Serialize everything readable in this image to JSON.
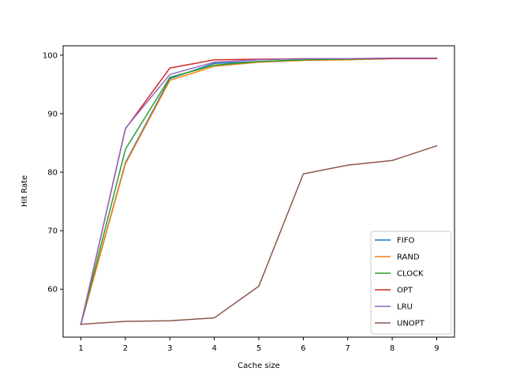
{
  "chart_data": {
    "type": "line",
    "title": "",
    "xlabel": "Cache size",
    "ylabel": "Hit Rate",
    "x": [
      1,
      2,
      3,
      4,
      5,
      6,
      7,
      8,
      9
    ],
    "xlim": [
      0.6,
      9.4
    ],
    "ylim": [
      51.8,
      101.6
    ],
    "xticks": [
      1,
      2,
      3,
      4,
      5,
      6,
      7,
      8,
      9
    ],
    "yticks": [
      60,
      70,
      80,
      90,
      100
    ],
    "grid": false,
    "legend_position": "lower-right",
    "series": [
      {
        "name": "FIFO",
        "color": "#1f77b4",
        "values": [
          54.0,
          81.6,
          96.0,
          98.6,
          98.9,
          99.2,
          99.3,
          99.4,
          99.4
        ]
      },
      {
        "name": "RAND",
        "color": "#ff7f0e",
        "values": [
          54.0,
          81.4,
          95.7,
          98.1,
          98.8,
          99.1,
          99.2,
          99.4,
          99.4
        ]
      },
      {
        "name": "CLOCK",
        "color": "#2ca02c",
        "values": [
          54.0,
          83.9,
          96.2,
          98.3,
          98.9,
          99.2,
          99.3,
          99.4,
          99.4
        ]
      },
      {
        "name": "OPT",
        "color": "#d62728",
        "values": [
          54.0,
          87.4,
          97.8,
          99.2,
          99.3,
          99.4,
          99.4,
          99.4,
          99.4
        ]
      },
      {
        "name": "LRU",
        "color": "#9467bd",
        "values": [
          54.0,
          87.5,
          96.7,
          98.8,
          99.2,
          99.4,
          99.4,
          99.5,
          99.5
        ]
      },
      {
        "name": "UNOPT",
        "color": "#8c564b",
        "values": [
          54.0,
          54.5,
          54.6,
          55.1,
          60.5,
          79.7,
          81.2,
          82.0,
          84.5
        ]
      }
    ]
  }
}
